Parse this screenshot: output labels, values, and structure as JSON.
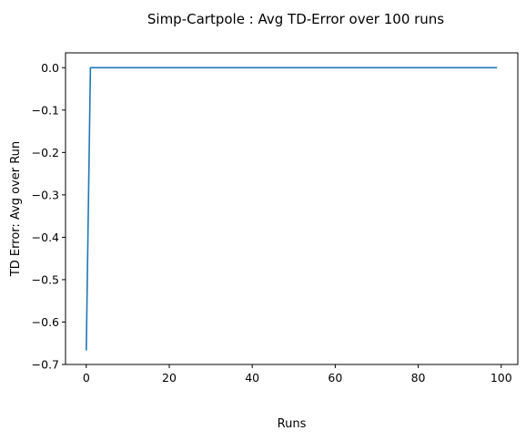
{
  "chart_data": {
    "type": "line",
    "title": "Simp-Cartpole : Avg TD-Error over 100 runs",
    "xlabel": "Runs",
    "ylabel": "TD Error: Avg over Run",
    "xlim": [
      -5,
      104
    ],
    "ylim": [
      -0.7,
      0.035
    ],
    "xticks": [
      0,
      20,
      40,
      60,
      80,
      100
    ],
    "yticks": [
      0.0,
      -0.1,
      -0.2,
      -0.3,
      -0.4,
      -0.5,
      -0.6,
      -0.7
    ],
    "xtick_labels": [
      "0",
      "20",
      "40",
      "60",
      "80",
      "100"
    ],
    "ytick_labels": [
      "0.0",
      "−0.1",
      "−0.2",
      "−0.3",
      "−0.4",
      "−0.5",
      "−0.6",
      "−0.7"
    ],
    "grid": false,
    "legend": "none",
    "series": [
      {
        "color": "#1f77b4",
        "points": [
          [
            0,
            -0.667
          ],
          [
            1,
            0.0
          ],
          [
            99,
            0.0
          ]
        ]
      }
    ]
  }
}
